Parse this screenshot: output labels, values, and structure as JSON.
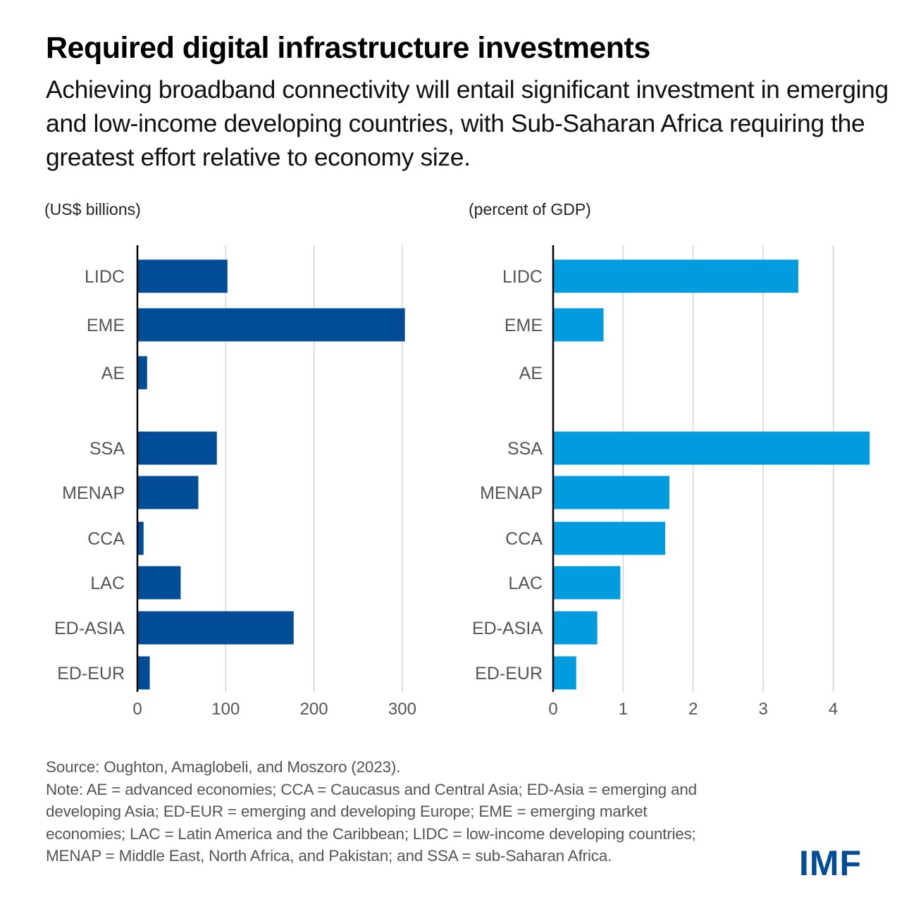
{
  "header": {
    "title": "Required digital infrastructure investments",
    "subtitle": "Achieving broadband connectivity will entail significant investment in emerging and low-income developing countries, with Sub-Saharan Africa requiring the greatest effort relative to economy size."
  },
  "colors": {
    "left_bars": "#004c97",
    "right_bars": "#009cde",
    "gridline": "#dddddd",
    "axis": "#000000",
    "logo": "#004c97"
  },
  "chart_data": [
    {
      "type": "bar",
      "orientation": "horizontal",
      "title": "(US$ billions)",
      "xlabel": "",
      "ylabel": "",
      "xlim": [
        0,
        300
      ],
      "xticks": [
        0,
        100,
        200,
        300
      ],
      "grid": true,
      "categories": [
        "LIDC",
        "EME",
        "AE",
        "SSA",
        "MENAP",
        "CCA",
        "LAC",
        "ED-ASIA",
        "ED-EUR"
      ],
      "groups": [
        [
          "LIDC",
          "EME",
          "AE"
        ],
        [
          "SSA",
          "MENAP",
          "CCA",
          "LAC",
          "ED-ASIA",
          "ED-EUR"
        ]
      ],
      "values": [
        102,
        303,
        11,
        90,
        69,
        7,
        49,
        177,
        14
      ]
    },
    {
      "type": "bar",
      "orientation": "horizontal",
      "title": "(percent of GDP)",
      "xlabel": "",
      "ylabel": "",
      "xlim": [
        0,
        4.5
      ],
      "xticks": [
        0,
        1,
        2,
        3,
        4
      ],
      "grid": true,
      "categories": [
        "LIDC",
        "EME",
        "AE",
        "SSA",
        "MENAP",
        "CCA",
        "LAC",
        "ED-ASIA",
        "ED-EUR"
      ],
      "groups": [
        [
          "LIDC",
          "EME",
          "AE"
        ],
        [
          "SSA",
          "MENAP",
          "CCA",
          "LAC",
          "ED-ASIA",
          "ED-EUR"
        ]
      ],
      "values": [
        3.5,
        0.72,
        0,
        4.52,
        1.66,
        1.6,
        0.96,
        0.63,
        0.33
      ]
    }
  ],
  "footer": {
    "source": "Source: Oughton, Amaglobeli, and Moszoro (2023).",
    "note": "Note: AE = advanced economies; CCA = Caucasus and Central Asia; ED-Asia = emerging and developing Asia; ED-EUR = emerging and developing Europe; EME = emerging market economies; LAC = Latin America and the Caribbean; LIDC = low-income developing countries; MENAP = Middle East, North Africa, and Pakistan; and SSA = sub-Saharan Africa.",
    "logo": "IMF"
  }
}
